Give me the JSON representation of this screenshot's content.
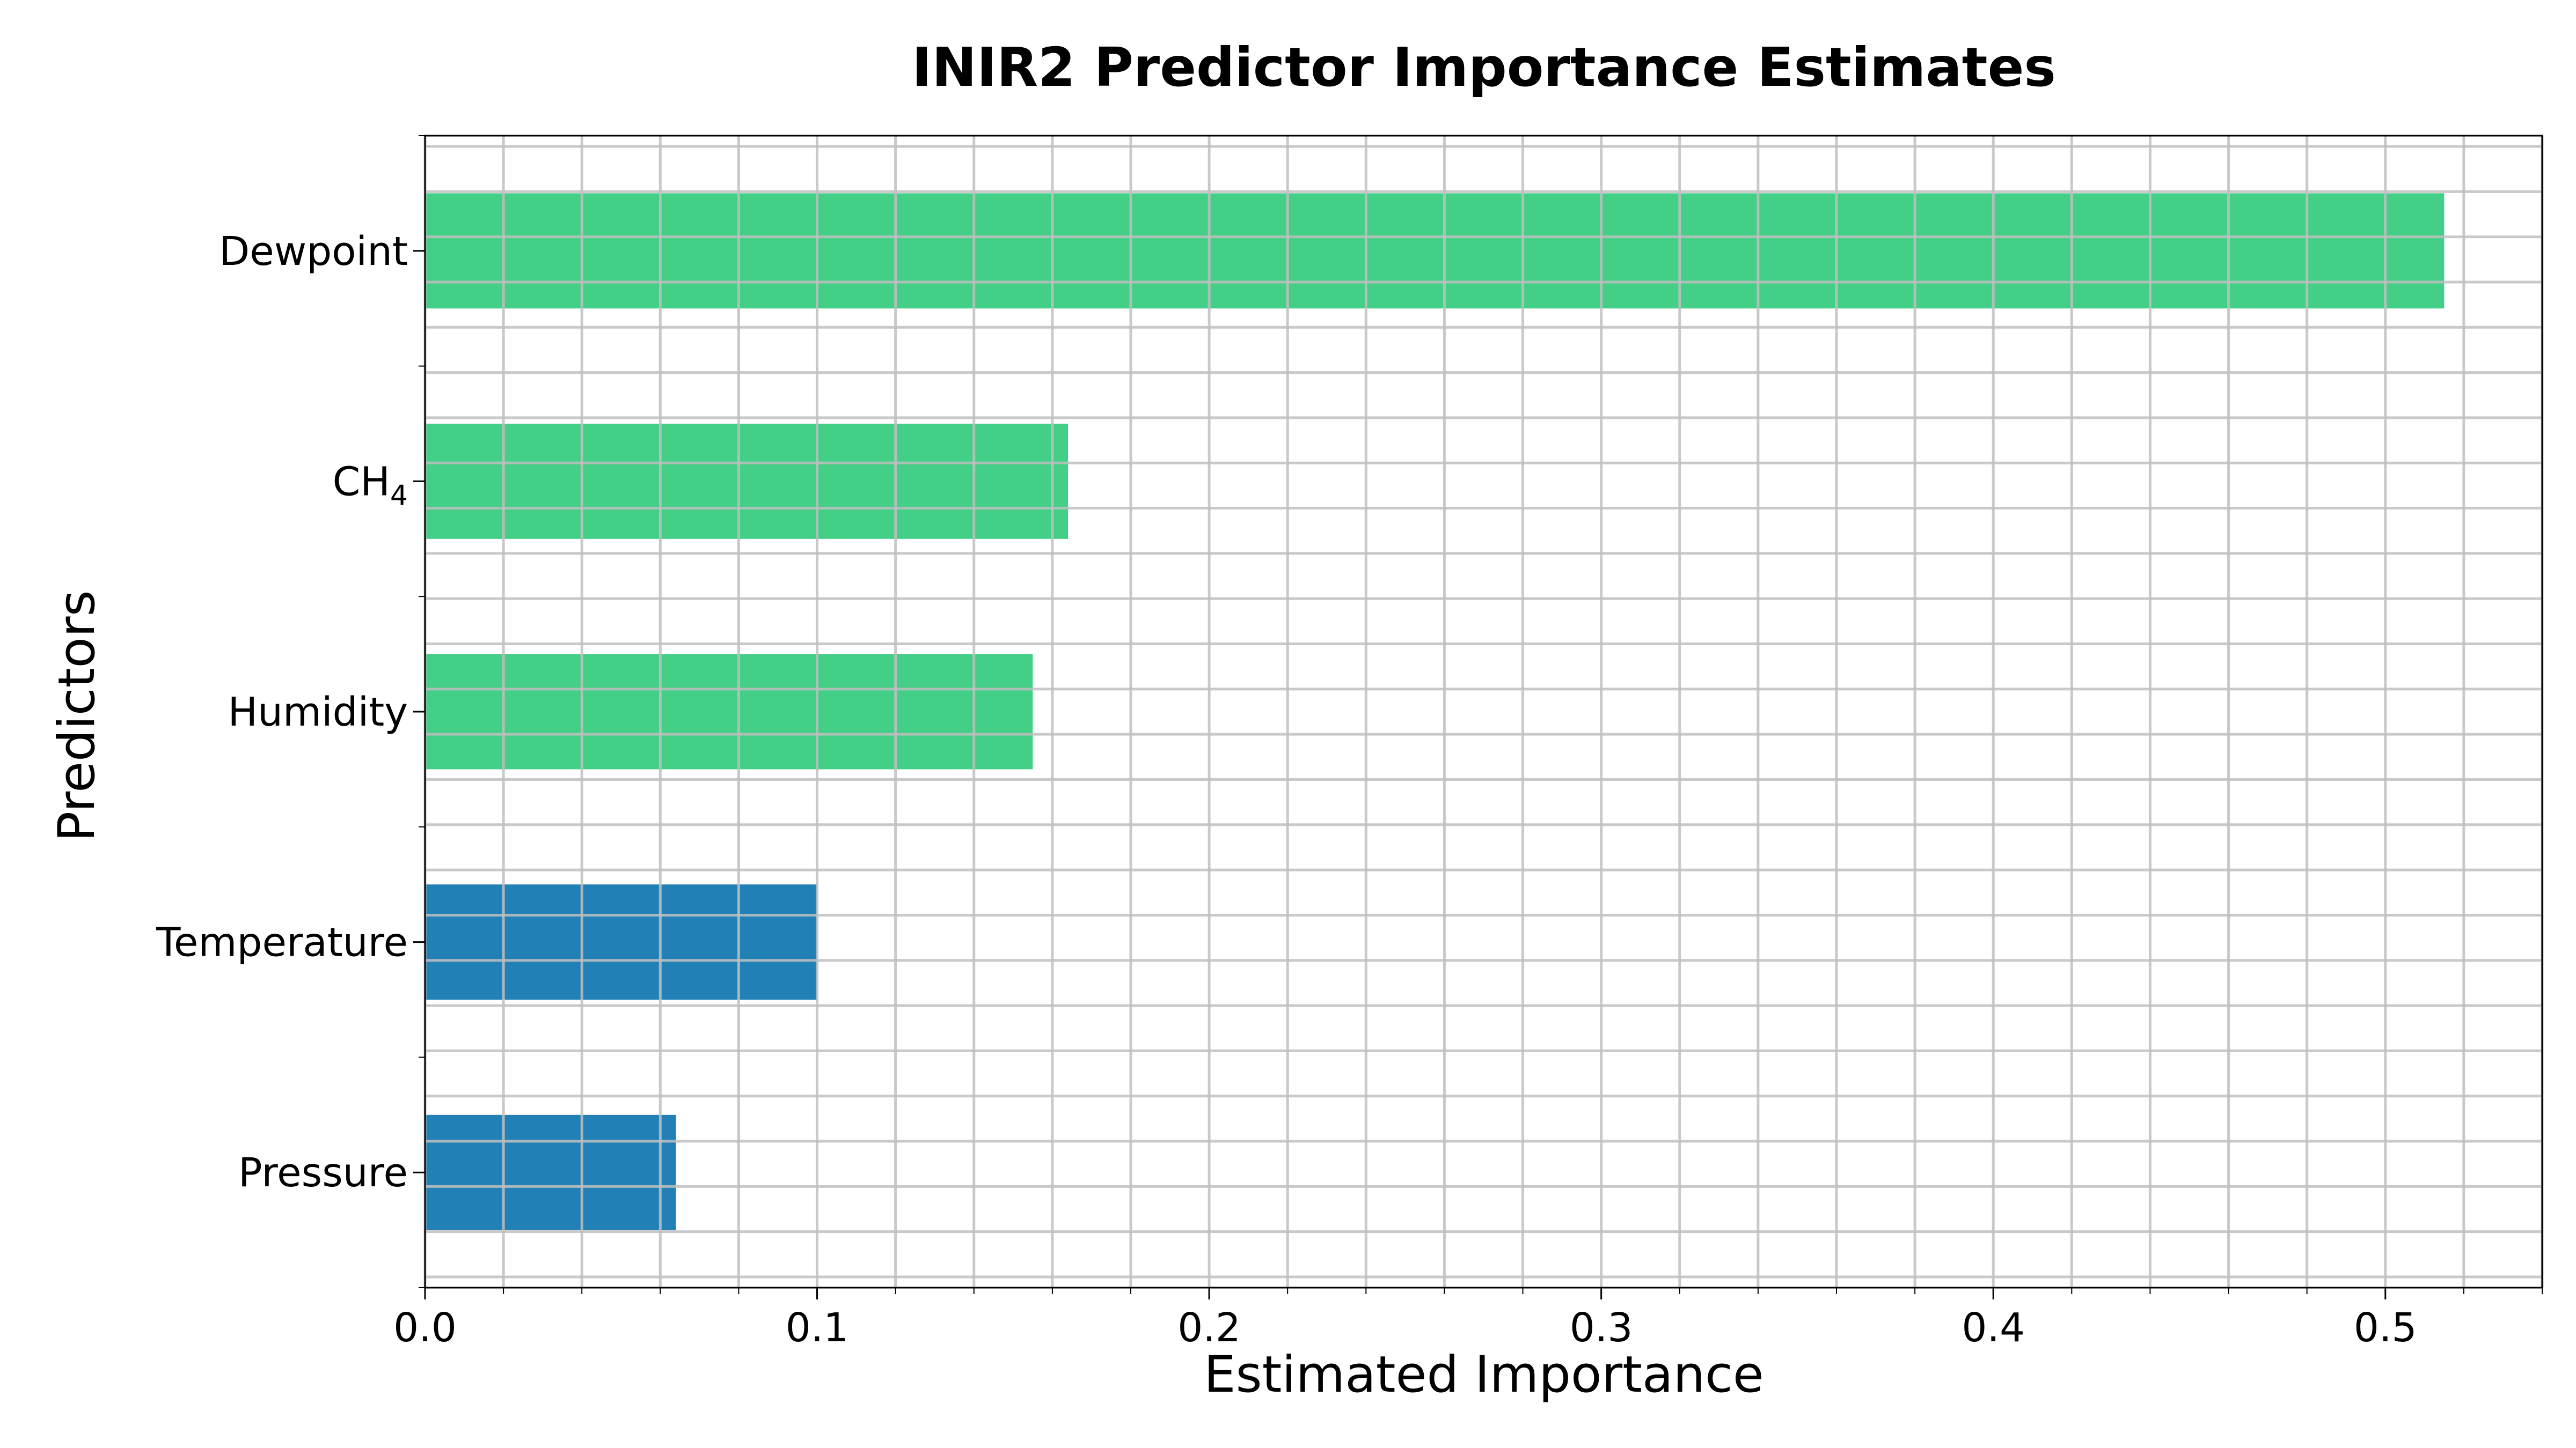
{
  "chart_data": {
    "type": "bar",
    "orientation": "horizontal",
    "title": "INIR2 Predictor Importance Estimates",
    "xlabel": "Estimated Importance",
    "ylabel": "Predictors",
    "categories": [
      "Dewpoint",
      "CH4",
      "Humidity",
      "Temperature",
      "Pressure"
    ],
    "category_labels": [
      {
        "base": "Dewpoint",
        "sub": ""
      },
      {
        "base": "CH",
        "sub": "4"
      },
      {
        "base": "Humidity",
        "sub": ""
      },
      {
        "base": "Temperature",
        "sub": ""
      },
      {
        "base": "Pressure",
        "sub": ""
      }
    ],
    "values": [
      0.515,
      0.164,
      0.155,
      0.1,
      0.064
    ],
    "bar_colors": [
      "#43cf86",
      "#43cf86",
      "#43cf86",
      "#2180b5",
      "#2180b5"
    ],
    "xlim": [
      0,
      0.54
    ],
    "xticks": [
      0.0,
      0.1,
      0.2,
      0.3,
      0.4,
      0.5
    ],
    "xtick_labels": [
      "0.0",
      "0.1",
      "0.2",
      "0.3",
      "0.4",
      "0.5"
    ],
    "grid": true,
    "grid_minor": true
  }
}
